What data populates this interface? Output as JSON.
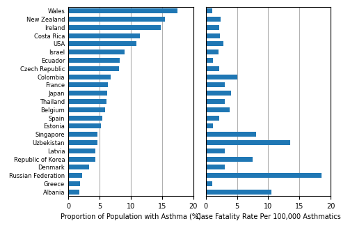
{
  "chart_data": [
    {
      "type": "bar",
      "orientation": "horizontal",
      "categories": [
        "Wales",
        "New Zealand",
        "Ireland",
        "Costa Rica",
        "USA",
        "Israel",
        "Ecuador",
        "Czech Republic",
        "Colombia",
        "France",
        "Japan",
        "Thailand",
        "Belgium",
        "Spain",
        "Estonia",
        "Singapore",
        "Uzbekistan",
        "Latvia",
        "Republic of Korea",
        "Denmark",
        "Russian Federation",
        "Greece",
        "Albania"
      ],
      "values": [
        17.5,
        15.5,
        14.8,
        11.5,
        10.9,
        9.0,
        8.2,
        8.1,
        6.8,
        6.3,
        6.2,
        6.1,
        5.9,
        5.5,
        5.2,
        4.7,
        4.7,
        4.3,
        4.3,
        3.3,
        2.2,
        1.9,
        1.8
      ],
      "xlabel": "Proportion of Population with Asthma (%)",
      "xlim": [
        0,
        20
      ],
      "xticks": [
        0,
        5,
        10,
        15,
        20
      ],
      "grid": true
    },
    {
      "type": "bar",
      "orientation": "horizontal",
      "categories": [
        "Wales",
        "New Zealand",
        "Ireland",
        "Costa Rica",
        "USA",
        "Israel",
        "Ecuador",
        "Czech Republic",
        "Colombia",
        "France",
        "Japan",
        "Thailand",
        "Belgium",
        "Spain",
        "Estonia",
        "Singapore",
        "Uzbekistan",
        "Latvia",
        "Republic of Korea",
        "Denmark",
        "Russian Federation",
        "Greece",
        "Albania"
      ],
      "values": [
        1.0,
        2.4,
        2.2,
        2.3,
        2.8,
        2.1,
        1.2,
        2.2,
        5.0,
        3.0,
        4.0,
        3.0,
        3.8,
        2.2,
        1.2,
        8.0,
        13.5,
        3.0,
        7.5,
        3.0,
        18.5,
        1.0,
        10.5
      ],
      "xlabel": "Case Fatality Rate Per 100,000 Asthmatics",
      "xlim": [
        0,
        20
      ],
      "xticks": [
        0,
        5,
        10,
        15,
        20
      ],
      "grid": true,
      "tick_labels": "x"
    }
  ]
}
